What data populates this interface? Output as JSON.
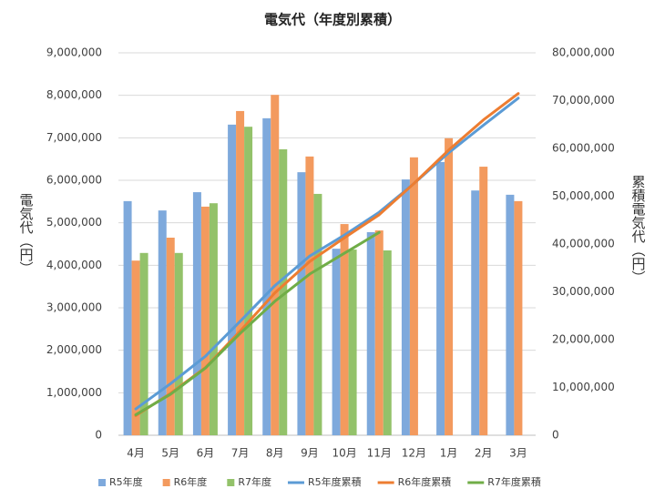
{
  "chart_data": {
    "type": "combo",
    "title": "電気代（年度別累積）",
    "ylabel": "電気代（円）",
    "y2label": "累積電気代（円）",
    "categories": [
      "4月",
      "5月",
      "6月",
      "7月",
      "8月",
      "9月",
      "10月",
      "11月",
      "12月",
      "1月",
      "2月",
      "3月"
    ],
    "ylim": [
      0,
      9000000
    ],
    "yticks": [
      {
        "value": 0,
        "label": "0"
      },
      {
        "value": 1000000,
        "label": "1,000,000"
      },
      {
        "value": 2000000,
        "label": "2,000,000"
      },
      {
        "value": 3000000,
        "label": "3,000,000"
      },
      {
        "value": 4000000,
        "label": "4,000,000"
      },
      {
        "value": 5000000,
        "label": "5,000,000"
      },
      {
        "value": 6000000,
        "label": "6,000,000"
      },
      {
        "value": 7000000,
        "label": "7,000,000"
      },
      {
        "value": 8000000,
        "label": "8,000,000"
      },
      {
        "value": 9000000,
        "label": "9,000,000"
      }
    ],
    "y2lim": [
      0,
      80000000
    ],
    "y2ticks": [
      {
        "value": 0,
        "label": "0"
      },
      {
        "value": 10000000,
        "label": "10,000,000"
      },
      {
        "value": 20000000,
        "label": "20,000,000"
      },
      {
        "value": 30000000,
        "label": "30,000,000"
      },
      {
        "value": 40000000,
        "label": "40,000,000"
      },
      {
        "value": 50000000,
        "label": "50,000,000"
      },
      {
        "value": 60000000,
        "label": "60,000,000"
      },
      {
        "value": 70000000,
        "label": "70,000,000"
      },
      {
        "value": 80000000,
        "label": "80,000,000"
      }
    ],
    "grid": true,
    "legend": "bottom",
    "series": [
      {
        "name": "R5年度",
        "type": "bar",
        "color": "#7ea9dc",
        "values": [
          5510000,
          5290000,
          5720000,
          7310000,
          7460000,
          6190000,
          4390000,
          4780000,
          6020000,
          6430000,
          5760000,
          5660000
        ]
      },
      {
        "name": "R6年度",
        "type": "bar",
        "color": "#f39a5e",
        "values": [
          4110000,
          4650000,
          5380000,
          7630000,
          8010000,
          6560000,
          4970000,
          4820000,
          6540000,
          6990000,
          6320000,
          5510000
        ]
      },
      {
        "name": "R7年度",
        "type": "bar",
        "color": "#93c26a",
        "values": [
          4290000,
          4290000,
          5460000,
          7260000,
          6730000,
          5680000,
          4370000,
          4350000,
          null,
          null,
          null,
          null
        ]
      },
      {
        "name": "R5年度累積",
        "type": "line",
        "axis": "y2",
        "color": "#5b9bd5",
        "values": [
          5510000,
          10800000,
          16520000,
          23830000,
          31290000,
          37480000,
          41870000,
          46650000,
          52670000,
          59100000,
          64860000,
          70520000
        ]
      },
      {
        "name": "R6年度累積",
        "type": "line",
        "axis": "y2",
        "color": "#ed7d31",
        "values": [
          4110000,
          8760000,
          14140000,
          21770000,
          29780000,
          36340000,
          41310000,
          46130000,
          52670000,
          59660000,
          65980000,
          71490000
        ]
      },
      {
        "name": "R7年度累積",
        "type": "line",
        "axis": "y2",
        "color": "#70ad47",
        "values": [
          4290000,
          8580000,
          14040000,
          21300000,
          28030000,
          33710000,
          38080000,
          42430000,
          null,
          null,
          null,
          null
        ]
      }
    ]
  }
}
